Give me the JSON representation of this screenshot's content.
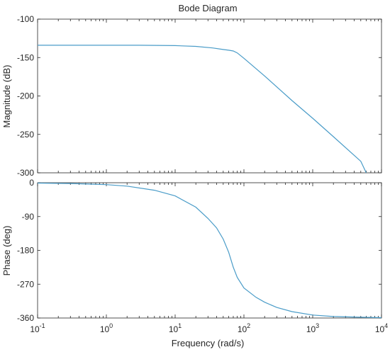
{
  "chart_data": {
    "type": "line",
    "title": "Bode Diagram",
    "series_color": "#4a9cc8",
    "x": {
      "label": "Frequency  (rad/s)",
      "scale": "log",
      "range": [
        0.1,
        10000
      ],
      "ticks": [
        {
          "value": 0.1,
          "base": "10",
          "exp": "-1"
        },
        {
          "value": 1,
          "base": "10",
          "exp": "0"
        },
        {
          "value": 10,
          "base": "10",
          "exp": "1"
        },
        {
          "value": 100,
          "base": "10",
          "exp": "2"
        },
        {
          "value": 1000,
          "base": "10",
          "exp": "3"
        },
        {
          "value": 10000,
          "base": "10",
          "exp": "4"
        }
      ]
    },
    "magnitude": {
      "ylabel": "Magnitude (dB)",
      "ylim": [
        -300,
        -100
      ],
      "yticks": [
        -100,
        -150,
        -200,
        -250,
        -300
      ],
      "points": [
        [
          0.1,
          -134
        ],
        [
          1,
          -134
        ],
        [
          3,
          -134
        ],
        [
          10,
          -134.5
        ],
        [
          20,
          -135.5
        ],
        [
          35,
          -137.5
        ],
        [
          50,
          -139.5
        ],
        [
          60,
          -140.5
        ],
        [
          70,
          -141.5
        ],
        [
          80,
          -144
        ],
        [
          100,
          -151
        ],
        [
          200,
          -174
        ],
        [
          500,
          -206
        ],
        [
          1000,
          -229
        ],
        [
          2000,
          -253
        ],
        [
          5000,
          -285
        ],
        [
          6000,
          -300
        ]
      ]
    },
    "phase": {
      "ylabel": "Phase (deg)",
      "ylim": [
        -360,
        0
      ],
      "yticks": [
        0,
        -90,
        -180,
        -270,
        -360
      ],
      "points": [
        [
          0.1,
          -1
        ],
        [
          0.3,
          -2
        ],
        [
          1,
          -5
        ],
        [
          2,
          -9
        ],
        [
          5,
          -20
        ],
        [
          10,
          -35
        ],
        [
          20,
          -65
        ],
        [
          30,
          -95
        ],
        [
          40,
          -120
        ],
        [
          50,
          -150
        ],
        [
          60,
          -185
        ],
        [
          70,
          -225
        ],
        [
          80,
          -252
        ],
        [
          100,
          -280
        ],
        [
          150,
          -305
        ],
        [
          200,
          -318
        ],
        [
          300,
          -332
        ],
        [
          500,
          -343
        ],
        [
          1000,
          -352
        ],
        [
          2000,
          -356
        ],
        [
          5000,
          -358
        ],
        [
          10000,
          -359
        ]
      ]
    }
  }
}
